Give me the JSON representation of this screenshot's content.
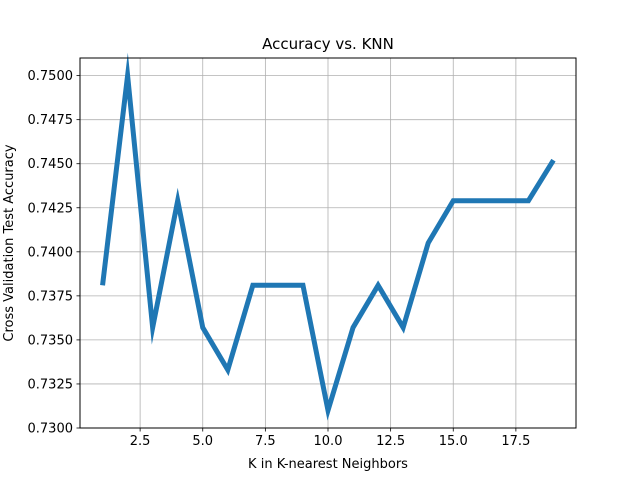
{
  "chart_data": {
    "type": "line",
    "title": "Accuracy vs. KNN",
    "xlabel": "K in K-nearest Neighbors",
    "ylabel": "Cross Validation Test Accuracy",
    "xlim": [
      0.1,
      19.9
    ],
    "ylim": [
      0.73,
      0.751
    ],
    "xticks": [
      2.5,
      5.0,
      7.5,
      10.0,
      12.5,
      15.0,
      17.5
    ],
    "xtick_labels": [
      "2.5",
      "5.0",
      "7.5",
      "10.0",
      "12.5",
      "15.0",
      "17.5"
    ],
    "yticks": [
      0.73,
      0.7325,
      0.735,
      0.7375,
      0.74,
      0.7425,
      0.745,
      0.7475,
      0.75
    ],
    "ytick_labels": [
      "0.7300",
      "0.7325",
      "0.7350",
      "0.7375",
      "0.7400",
      "0.7425",
      "0.7450",
      "0.7475",
      "0.7500"
    ],
    "grid": true,
    "series": [
      {
        "color": "#1f77b4",
        "x": [
          1,
          2,
          3,
          4,
          5,
          6,
          7,
          8,
          9,
          10,
          11,
          12,
          13,
          14,
          15,
          16,
          17,
          18,
          19
        ],
        "y": [
          0.7381,
          0.75,
          0.7357,
          0.7429,
          0.7357,
          0.7333,
          0.7381,
          0.7381,
          0.7381,
          0.731,
          0.7357,
          0.7381,
          0.7357,
          0.7405,
          0.7429,
          0.7429,
          0.7429,
          0.7429,
          0.7452
        ]
      }
    ]
  }
}
